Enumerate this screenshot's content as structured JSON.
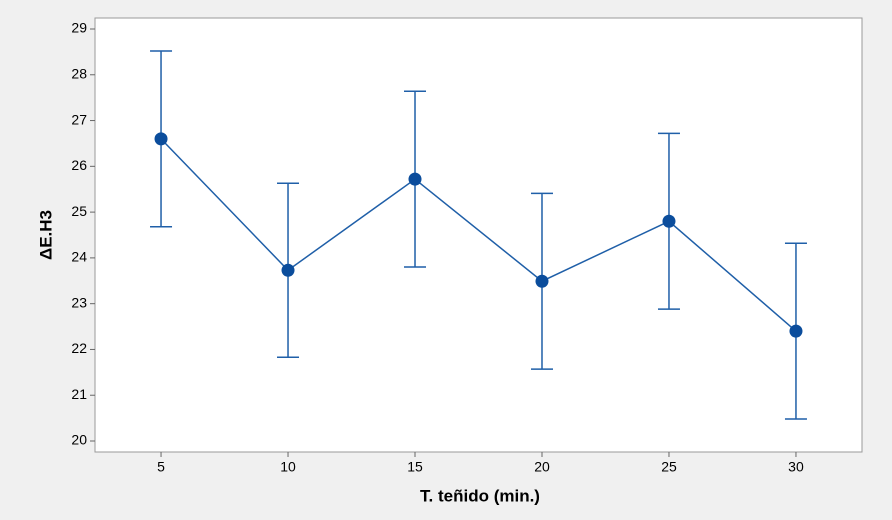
{
  "chart_data": {
    "type": "errorbar",
    "x_label": "T. teñido (min.)",
    "y_label": "ΔE.H3",
    "x": [
      5,
      10,
      15,
      20,
      25,
      30
    ],
    "values": [
      26.6,
      23.73,
      25.72,
      23.49,
      24.8,
      22.4
    ],
    "errors": [
      1.92,
      1.9,
      1.92,
      1.92,
      1.92,
      1.92
    ],
    "color": "#1f5fa8",
    "xlim": [
      2.4,
      32.6
    ],
    "xticks": [
      5,
      10,
      15,
      20,
      25,
      30
    ],
    "ylim": [
      19.76,
      29.24
    ],
    "yticks": [
      20,
      21,
      22,
      23,
      24,
      25,
      26,
      27,
      28,
      29
    ],
    "grid": false
  }
}
